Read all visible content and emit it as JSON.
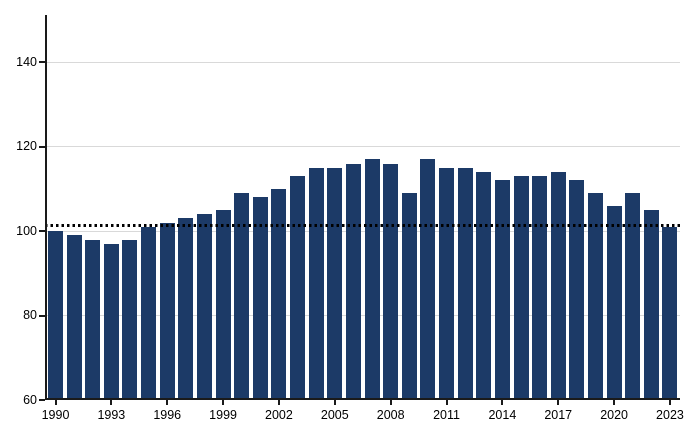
{
  "figure": {
    "background": "#ffffff",
    "title": "",
    "y_axis_tick_labels": [
      "60",
      "80",
      "100",
      "120",
      "140"
    ],
    "x_axis_tick_labels": [
      "1990",
      "1993",
      "1996",
      "1999",
      "2002",
      "2005",
      "2008",
      "2011",
      "2014",
      "2017",
      "2020",
      "2023"
    ]
  },
  "chart_data": {
    "type": "bar",
    "title": "",
    "xlabel": "",
    "ylabel": "",
    "x": [
      1990,
      1991,
      1992,
      1993,
      1994,
      1995,
      1996,
      1997,
      1998,
      1999,
      2000,
      2001,
      2002,
      2003,
      2004,
      2005,
      2006,
      2007,
      2008,
      2009,
      2010,
      2011,
      2012,
      2013,
      2014,
      2015,
      2016,
      2017,
      2018,
      2019,
      2020,
      2021,
      2022,
      2023
    ],
    "values": [
      100,
      99,
      98,
      97,
      98,
      101,
      102,
      103,
      104,
      105,
      109,
      108,
      110,
      113,
      115,
      115,
      116,
      117,
      116,
      109,
      117,
      115,
      115,
      114,
      112,
      113,
      113,
      114,
      112,
      109,
      106,
      109,
      105,
      101
    ],
    "ylim": [
      60,
      151
    ],
    "y_ticks": [
      60,
      80,
      100,
      120,
      140
    ],
    "y_gridlines": [
      80,
      100,
      120,
      140
    ],
    "x_labeled_ticks": [
      1990,
      1993,
      1996,
      1999,
      2002,
      2005,
      2008,
      2011,
      2014,
      2017,
      2020,
      2023
    ],
    "reference_line": {
      "value": 101.4,
      "style": "dotted",
      "color": "#000000"
    },
    "bar_color": "#1c3a67",
    "grid_color": "#d9d9d9",
    "axis_color": "#1a1a1a",
    "text_color": "#000000",
    "grid": "horizontal",
    "legend": "none"
  }
}
